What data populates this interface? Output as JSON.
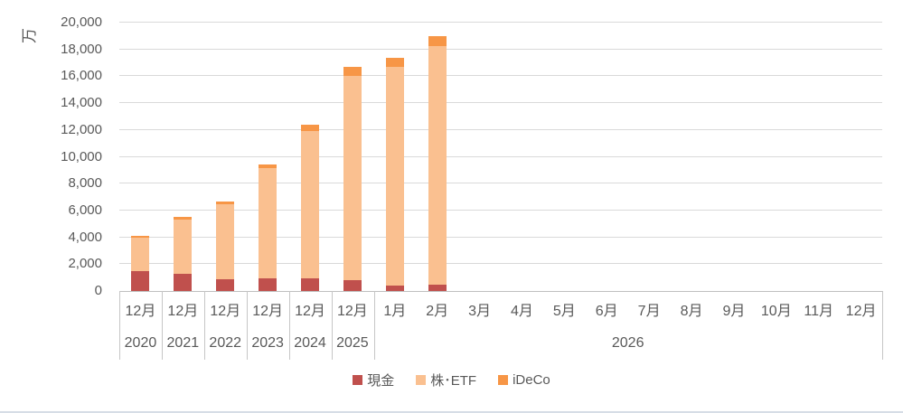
{
  "chart_data": {
    "type": "bar",
    "subtype": "stacked-column",
    "title": "",
    "y_axis_title": "万",
    "ylim": [
      0,
      20000
    ],
    "y_tick_step": 2000,
    "y_ticks": [
      "0",
      "2,000",
      "4,000",
      "6,000",
      "8,000",
      "10,000",
      "12,000",
      "14,000",
      "16,000",
      "18,000",
      "20,000"
    ],
    "grid": true,
    "legend_position": "bottom",
    "categories": [
      "12月",
      "12月",
      "12月",
      "12月",
      "12月",
      "12月",
      "1月",
      "2月",
      "3月",
      "4月",
      "5月",
      "6月",
      "7月",
      "8月",
      "9月",
      "10月",
      "11月",
      "12月"
    ],
    "year_groups": [
      {
        "label": "2020",
        "span": 1
      },
      {
        "label": "2021",
        "span": 1
      },
      {
        "label": "2022",
        "span": 1
      },
      {
        "label": "2023",
        "span": 1
      },
      {
        "label": "2024",
        "span": 1
      },
      {
        "label": "2025",
        "span": 1
      },
      {
        "label": "2026",
        "span": 12
      }
    ],
    "series": [
      {
        "name": "現金",
        "color": "#C0504D",
        "values": [
          1500,
          1250,
          900,
          930,
          930,
          820,
          420,
          500,
          0,
          0,
          0,
          0,
          0,
          0,
          0,
          0,
          0,
          0
        ]
      },
      {
        "name": "株･ETF",
        "color": "#FAC090",
        "values": [
          2500,
          4050,
          5550,
          8200,
          11000,
          15180,
          16260,
          17780,
          0,
          0,
          0,
          0,
          0,
          0,
          0,
          0,
          0,
          0
        ]
      },
      {
        "name": "iDeCo",
        "color": "#F79646",
        "values": [
          100,
          200,
          250,
          270,
          470,
          700,
          720,
          720,
          0,
          0,
          0,
          0,
          0,
          0,
          0,
          0,
          0,
          0
        ]
      }
    ],
    "totals": [
      4100,
      5500,
      6700,
      9400,
      12400,
      16700,
      17400,
      19000
    ]
  },
  "colors": {
    "gridline": "#d9d9d9",
    "axis_line": "#bfbfbf",
    "separator": "#c6c6c6",
    "text": "#595959"
  }
}
